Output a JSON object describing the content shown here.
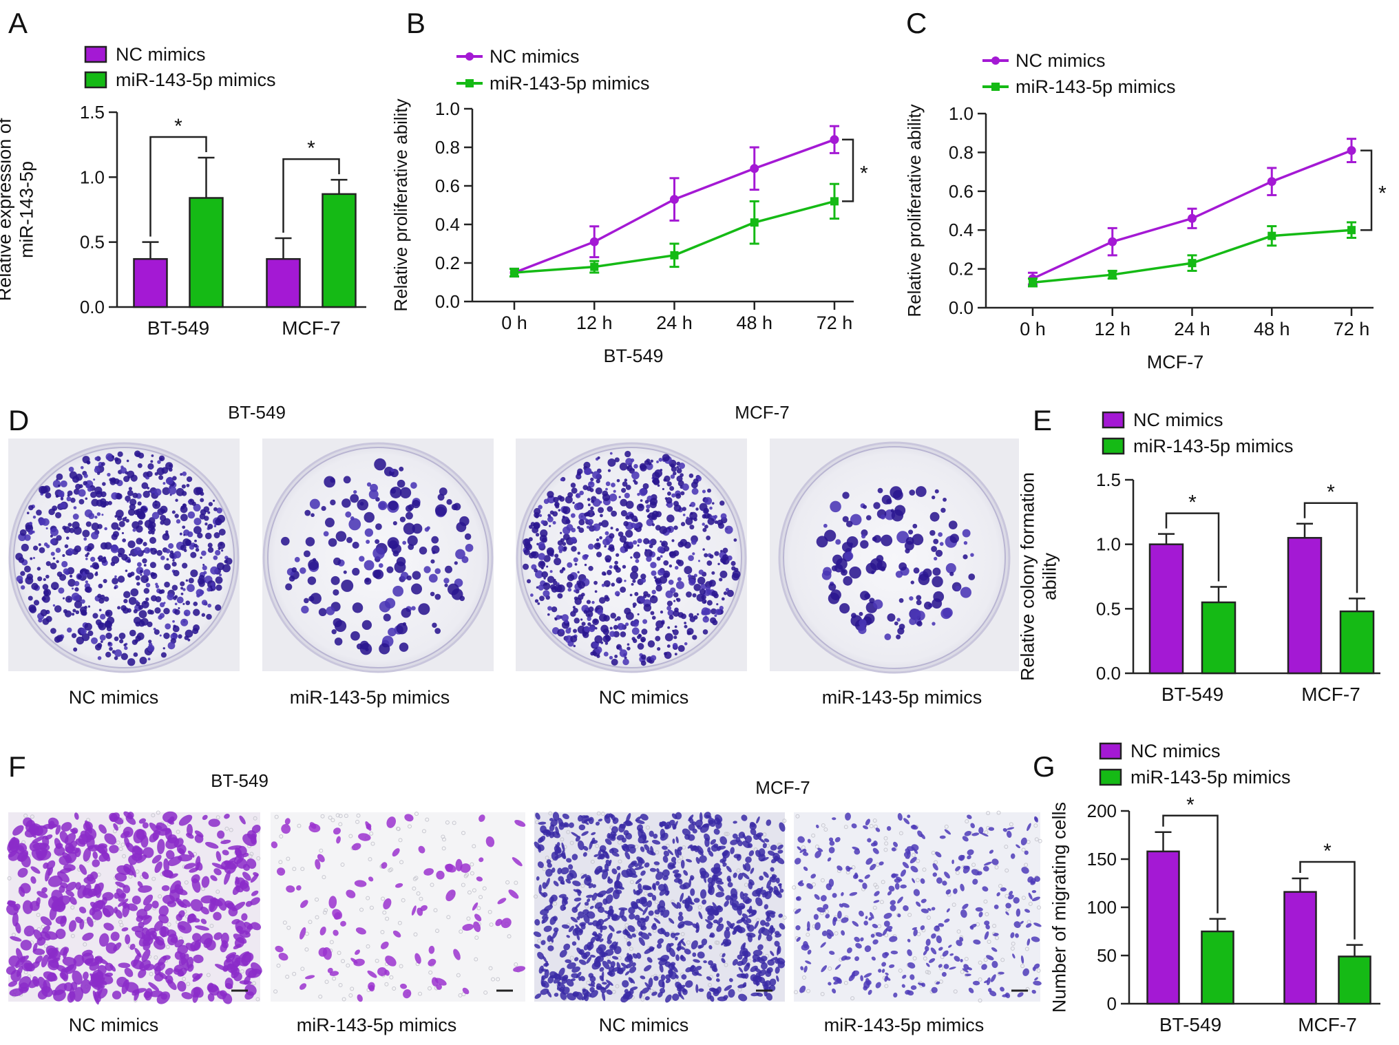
{
  "colors": {
    "nc": "#a419d4",
    "mir": "#15ba15",
    "axis": "#222222"
  },
  "panels": {
    "A": "A",
    "B": "B",
    "C": "C",
    "D": "D",
    "E": "E",
    "F": "F",
    "G": "G"
  },
  "legend": {
    "nc": "NC mimics",
    "mir": "miR-143-5p mimics"
  },
  "star": "*",
  "chart_data": [
    {
      "panel": "A",
      "type": "bar",
      "ylabel": [
        "Relative expression of",
        "miR-143-5p"
      ],
      "ylim": [
        0,
        1.5
      ],
      "yticks": [
        "0.0",
        "0.5",
        "1.0",
        "1.5"
      ],
      "ytick_values": [
        0,
        0.5,
        1.0,
        1.5
      ],
      "categories": [
        "BT-549",
        "MCF-7"
      ],
      "series": [
        {
          "name": "NC mimics",
          "values": [
            0.37,
            0.37
          ],
          "errors": [
            0.13,
            0.16
          ]
        },
        {
          "name": "miR-143-5p mimics",
          "values": [
            0.84,
            0.87
          ],
          "errors": [
            0.31,
            0.11
          ]
        }
      ],
      "significance": [
        "*",
        "*"
      ]
    },
    {
      "panel": "B",
      "type": "line",
      "xlabel": "BT-549",
      "ylabel": "Relative proliferative ability",
      "ylim": [
        0,
        1.0
      ],
      "yticks": [
        "0.0",
        "0.2",
        "0.4",
        "0.6",
        "0.8",
        "1.0"
      ],
      "ytick_values": [
        0,
        0.2,
        0.4,
        0.6,
        0.8,
        1.0
      ],
      "categories": [
        "0 h",
        "12 h",
        "24 h",
        "48 h",
        "72 h"
      ],
      "series": [
        {
          "name": "NC mimics",
          "values": [
            0.15,
            0.31,
            0.53,
            0.69,
            0.84
          ],
          "errors": [
            0.02,
            0.08,
            0.11,
            0.11,
            0.07
          ]
        },
        {
          "name": "miR-143-5p mimics",
          "values": [
            0.15,
            0.18,
            0.24,
            0.41,
            0.52
          ],
          "errors": [
            0.02,
            0.03,
            0.06,
            0.11,
            0.09
          ]
        }
      ],
      "significance": "*"
    },
    {
      "panel": "C",
      "type": "line",
      "xlabel": "MCF-7",
      "ylabel": "Relative proliferative ability",
      "ylim": [
        0,
        1.0
      ],
      "yticks": [
        "0.0",
        "0.2",
        "0.4",
        "0.6",
        "0.8",
        "1.0"
      ],
      "ytick_values": [
        0,
        0.2,
        0.4,
        0.6,
        0.8,
        1.0
      ],
      "categories": [
        "0 h",
        "12 h",
        "24 h",
        "48 h",
        "72 h"
      ],
      "series": [
        {
          "name": "NC mimics",
          "values": [
            0.15,
            0.34,
            0.46,
            0.65,
            0.81
          ],
          "errors": [
            0.03,
            0.07,
            0.05,
            0.07,
            0.06
          ]
        },
        {
          "name": "miR-143-5p mimics",
          "values": [
            0.13,
            0.17,
            0.23,
            0.37,
            0.4
          ],
          "errors": [
            0.02,
            0.02,
            0.04,
            0.05,
            0.04
          ]
        }
      ],
      "significance": "*"
    },
    {
      "panel": "E",
      "type": "bar",
      "ylabel": [
        "Relative colony formation",
        "ability"
      ],
      "ylim": [
        0,
        1.5
      ],
      "yticks": [
        "0.0",
        "0.5",
        "1.0",
        "1.5"
      ],
      "ytick_values": [
        0,
        0.5,
        1.0,
        1.5
      ],
      "categories": [
        "BT-549",
        "MCF-7"
      ],
      "series": [
        {
          "name": "NC mimics",
          "values": [
            1.0,
            1.05
          ],
          "errors": [
            0.08,
            0.11
          ]
        },
        {
          "name": "miR-143-5p mimics",
          "values": [
            0.55,
            0.48
          ],
          "errors": [
            0.12,
            0.1
          ]
        }
      ],
      "significance": [
        "*",
        "*"
      ]
    },
    {
      "panel": "G",
      "type": "bar",
      "ylabel": [
        "Number of migrating cells"
      ],
      "ylim": [
        0,
        200
      ],
      "yticks": [
        "0",
        "50",
        "100",
        "150",
        "200"
      ],
      "ytick_values": [
        0,
        50,
        100,
        150,
        200
      ],
      "categories": [
        "BT-549",
        "MCF-7"
      ],
      "series": [
        {
          "name": "NC mimics",
          "values": [
            158,
            116
          ],
          "errors": [
            20,
            14
          ]
        },
        {
          "name": "miR-143-5p mimics",
          "values": [
            75,
            49
          ],
          "errors": [
            13,
            12
          ]
        }
      ],
      "significance": [
        "*",
        "*"
      ]
    }
  ],
  "images": {
    "D": {
      "groups": [
        "BT-549",
        "MCF-7"
      ],
      "captions": [
        "NC mimics",
        "miR-143-5p mimics",
        "NC mimics",
        "miR-143-5p mimics"
      ]
    },
    "F": {
      "groups": [
        "BT-549",
        "MCF-7"
      ],
      "captions": [
        "NC mimics",
        "miR-143-5p mimics",
        "NC mimics",
        "miR-143-5p mimics"
      ]
    }
  }
}
